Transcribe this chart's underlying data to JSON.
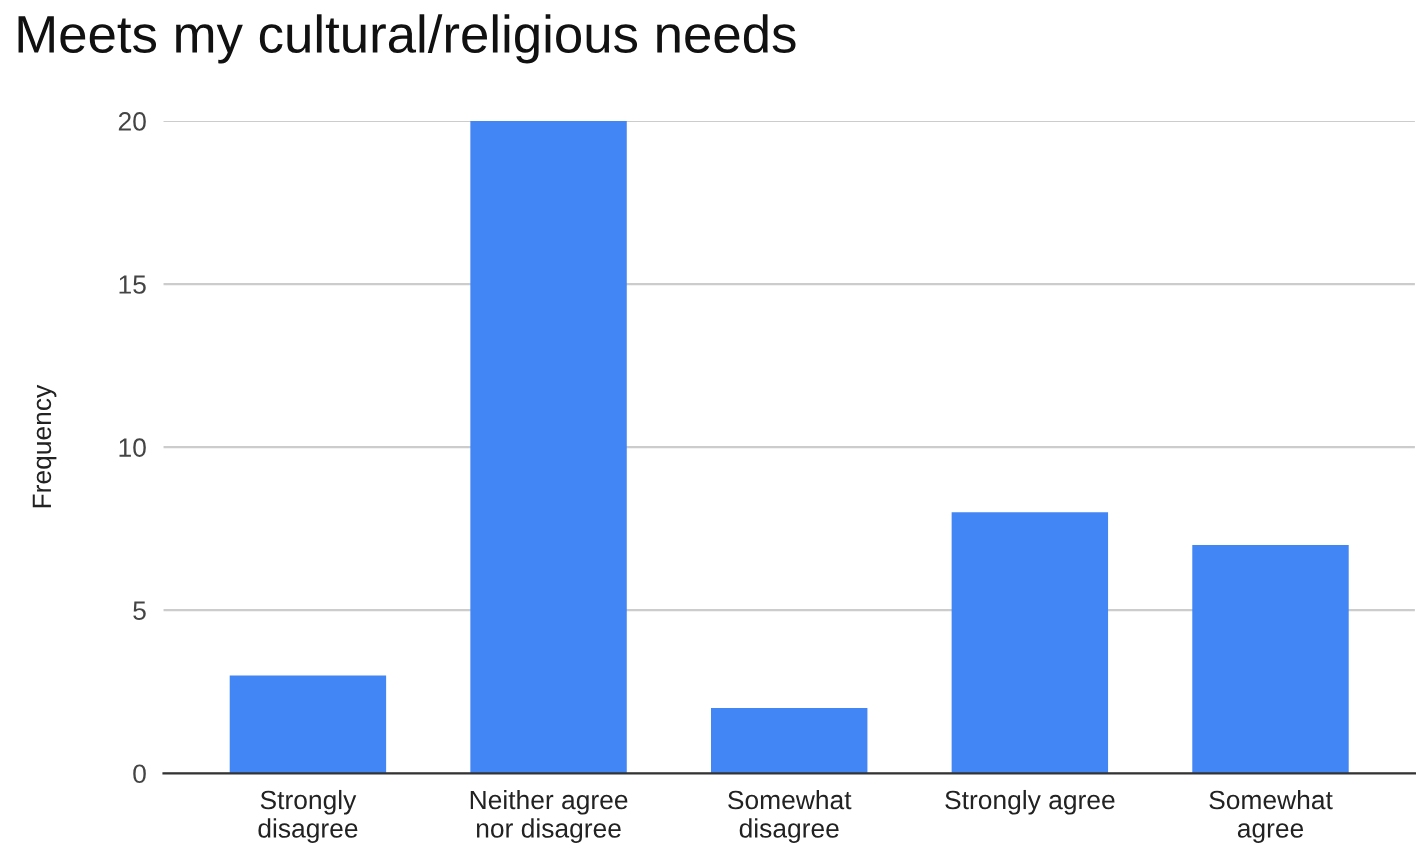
{
  "chart_data": {
    "type": "bar",
    "title": "Meets my cultural/religious needs",
    "ylabel": "Frequency",
    "categories": [
      "Strongly\ndisagree",
      "Neither agree\nnor disagree",
      "Somewhat\ndisagree",
      "Strongly agree",
      "Somewhat\nagree"
    ],
    "values": [
      3,
      20,
      2,
      8,
      7
    ],
    "color": "#4285f4",
    "ylim": [
      0,
      20
    ],
    "yticks": [
      0,
      5,
      10,
      15,
      20
    ],
    "grid": "y",
    "legend": false
  }
}
